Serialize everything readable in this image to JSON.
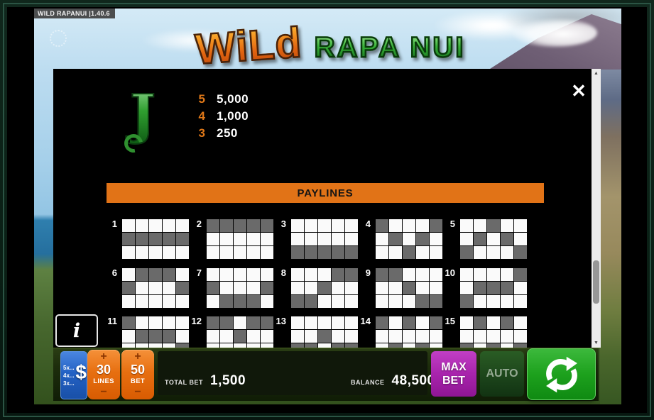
{
  "meta": {
    "version_badge": "WILD RAPANUI |1.40.6"
  },
  "logo": {
    "word1": "WiLd",
    "word2": "RAPA NUI"
  },
  "modal": {
    "close_icon": "✕"
  },
  "paytable": {
    "symbol": "J",
    "rows": [
      {
        "count": "5",
        "value": "5,000"
      },
      {
        "count": "4",
        "value": "1,000"
      },
      {
        "count": "3",
        "value": "250"
      }
    ]
  },
  "paylines": {
    "title": "PAYLINES",
    "rows": [
      [
        {
          "num": "1",
          "pattern": [
            1,
            1,
            1,
            1,
            1
          ]
        },
        {
          "num": "2",
          "pattern": [
            0,
            0,
            0,
            0,
            0
          ]
        },
        {
          "num": "3",
          "pattern": [
            2,
            2,
            2,
            2,
            2
          ]
        },
        {
          "num": "4",
          "pattern": [
            0,
            1,
            2,
            1,
            0
          ]
        },
        {
          "num": "5",
          "pattern": [
            2,
            1,
            0,
            1,
            2
          ]
        }
      ],
      [
        {
          "num": "6",
          "pattern": [
            1,
            0,
            0,
            0,
            1
          ]
        },
        {
          "num": "7",
          "pattern": [
            1,
            2,
            2,
            2,
            1
          ]
        },
        {
          "num": "8",
          "pattern": [
            2,
            2,
            1,
            0,
            0
          ]
        },
        {
          "num": "9",
          "pattern": [
            0,
            0,
            1,
            2,
            2
          ]
        },
        {
          "num": "10",
          "pattern": [
            2,
            1,
            1,
            1,
            0
          ]
        }
      ],
      [
        {
          "num": "11",
          "pattern": [
            0,
            1,
            1,
            1,
            2
          ]
        },
        {
          "num": "12",
          "pattern": [
            0,
            0,
            1,
            0,
            0
          ]
        },
        {
          "num": "13",
          "pattern": [
            2,
            2,
            1,
            2,
            2
          ]
        },
        {
          "num": "14",
          "pattern": [
            0,
            2,
            0,
            2,
            0
          ]
        },
        {
          "num": "15",
          "pattern": [
            2,
            0,
            2,
            0,
            2
          ]
        }
      ]
    ]
  },
  "scrollbar": {
    "up_icon": "▲",
    "down_icon": "▼"
  },
  "info_button": {
    "label": "i"
  },
  "controls": {
    "multiplier_button": {
      "lines": [
        "5x...",
        "4x...",
        "3x..."
      ],
      "symbol": "$"
    },
    "lines_button": {
      "plus": "+",
      "value": "30",
      "label": "LINES",
      "minus": "−"
    },
    "bet_button": {
      "plus": "+",
      "value": "50",
      "label": "BET",
      "minus": "−"
    },
    "total_bet": {
      "label": "TOTAL BET",
      "value": "1,500"
    },
    "balance": {
      "label": "BALANCE",
      "value": "48,500"
    },
    "max_bet_button": {
      "line1": "MAX",
      "line2": "BET"
    },
    "auto_button": {
      "label": "AUTO"
    }
  },
  "colors": {
    "banner_orange": "#e17317",
    "payline_filled": "#6a6a6a",
    "bet_button_orange": "#e76f10",
    "multiplier_blue": "#2361c4",
    "max_bet_purple": "#a824ac",
    "spin_green": "#1da11d",
    "pay_count_orange": "#e07818",
    "frame_green": "#2b5444"
  }
}
